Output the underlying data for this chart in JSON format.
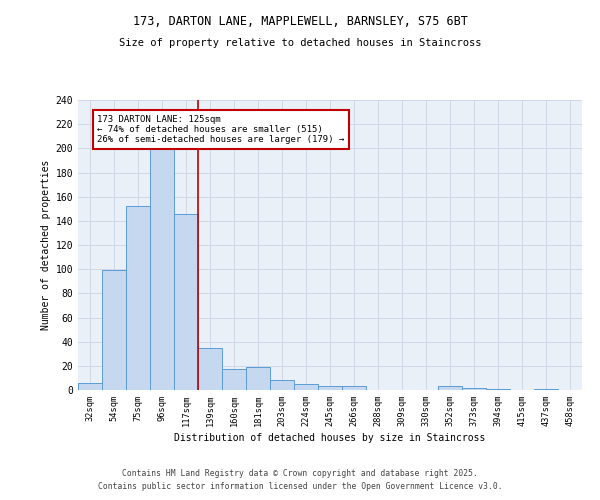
{
  "title1": "173, DARTON LANE, MAPPLEWELL, BARNSLEY, S75 6BT",
  "title2": "Size of property relative to detached houses in Staincross",
  "xlabel": "Distribution of detached houses by size in Staincross",
  "ylabel": "Number of detached properties",
  "bar_color": "#c5d8f0",
  "bar_edge_color": "#5b9bd5",
  "grid_color": "#d0d8e8",
  "background_color": "#eaf0f8",
  "bin_labels": [
    "32sqm",
    "54sqm",
    "75sqm",
    "96sqm",
    "117sqm",
    "139sqm",
    "160sqm",
    "181sqm",
    "203sqm",
    "224sqm",
    "245sqm",
    "266sqm",
    "288sqm",
    "309sqm",
    "330sqm",
    "352sqm",
    "373sqm",
    "394sqm",
    "415sqm",
    "437sqm",
    "458sqm"
  ],
  "bar_values": [
    6,
    99,
    152,
    201,
    146,
    35,
    17,
    19,
    8,
    5,
    3,
    3,
    0,
    0,
    0,
    3,
    2,
    1,
    0,
    1,
    0
  ],
  "ylim": [
    0,
    240
  ],
  "yticks": [
    0,
    20,
    40,
    60,
    80,
    100,
    120,
    140,
    160,
    180,
    200,
    220,
    240
  ],
  "vline_x": 4.5,
  "annotation_text": "173 DARTON LANE: 125sqm\n← 74% of detached houses are smaller (515)\n26% of semi-detached houses are larger (179) →",
  "vline_color": "#c00000",
  "annotation_box_color": "#c00000",
  "footer1": "Contains HM Land Registry data © Crown copyright and database right 2025.",
  "footer2": "Contains public sector information licensed under the Open Government Licence v3.0."
}
